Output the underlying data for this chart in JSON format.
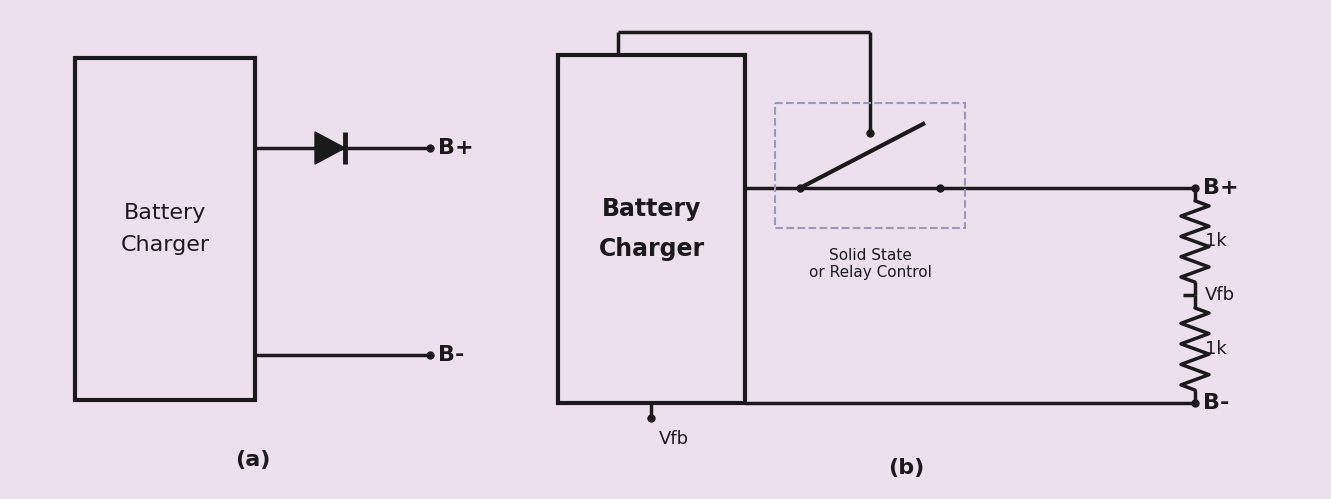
{
  "bg_color": "#ede0ed",
  "line_color": "#1a1a1a",
  "line_width": 2.5,
  "label_a": "(a)",
  "label_b": "(b)",
  "box_fill": "#ede0ed",
  "dashed_box_color": "#9999bb",
  "text_battery_charger_a": "Battery\nCharger",
  "text_battery_charger_b": "Battery\nCharger",
  "text_solid_state": "Solid State\nor Relay Control",
  "text_bplus": "B+",
  "text_bminus": "B-",
  "text_vfb": "Vfb",
  "text_1k_top": "1k",
  "text_1k_bot": "1k",
  "font_size_label": 15,
  "font_size_text_a": 16,
  "font_size_text_b": 17,
  "font_size_terminal": 16,
  "font_size_small": 12
}
